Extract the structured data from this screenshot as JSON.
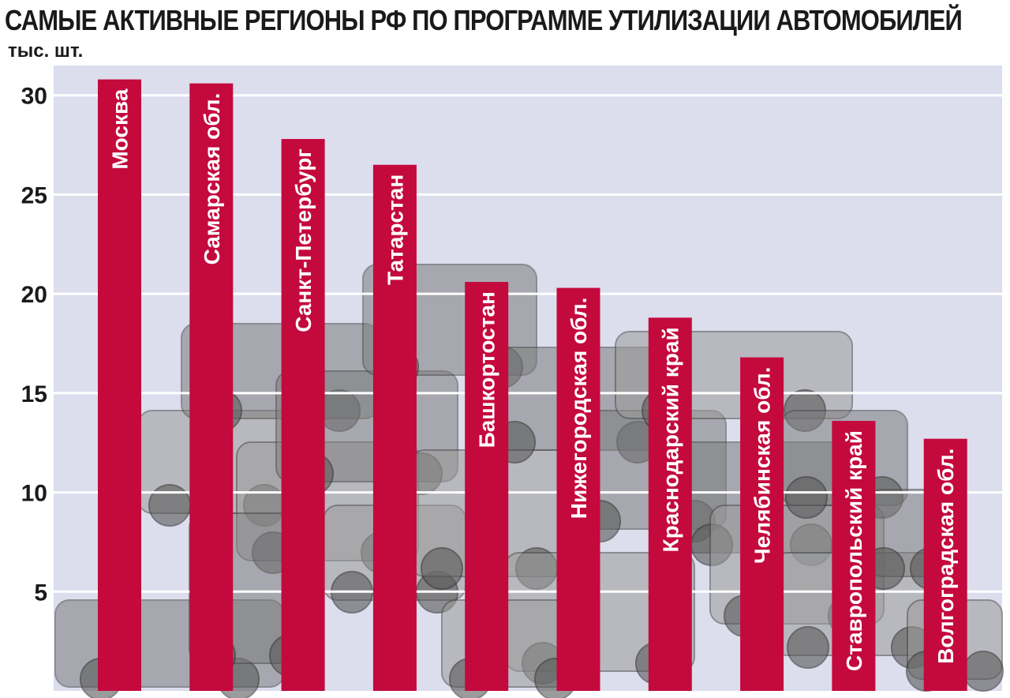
{
  "title": "САМЫЕ АКТИВНЫЕ РЕГИОНЫ РФ ПО ПРОГРАММЕ УТИЛИЗАЦИИ АВТОМОБИЛЕЙ",
  "unit_label": "тыс. шт.",
  "colors": {
    "plot_bg": "#dcdded",
    "bar": "#c4093d",
    "grid": "#ffffff",
    "cars": "#8a8a8a"
  },
  "chart_data": {
    "type": "bar",
    "orientation": "vertical",
    "title": "САМЫЕ АКТИВНЫЕ РЕГИОНЫ РФ ПО ПРОГРАММЕ УТИЛИЗАЦИИ АВТОМОБИЛЕЙ",
    "ylabel": "тыс. шт.",
    "xlabel": "",
    "categories": [
      "Москва",
      "Самарская обл.",
      "Санкт-Петербург",
      "Татарстан",
      "Башкортостан",
      "Нижегородская обл.",
      "Краснодарский край",
      "Челябинская обл.",
      "Ставропольский край",
      "Волгоградская обл."
    ],
    "values": [
      30.8,
      30.6,
      27.8,
      26.5,
      20.6,
      20.3,
      18.8,
      16.8,
      13.6,
      12.7
    ],
    "yticks": [
      5,
      10,
      15,
      20,
      25,
      30
    ],
    "ylim": [
      0,
      31.5
    ],
    "grid": true,
    "legend": "none",
    "bar_labels": "inside-vertical"
  }
}
